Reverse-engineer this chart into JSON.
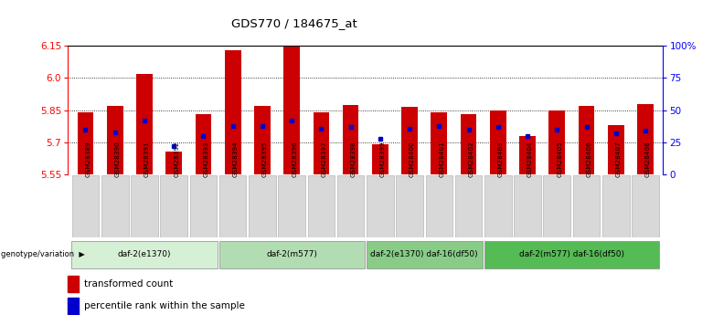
{
  "title": "GDS770 / 184675_at",
  "samples": [
    "GSM28389",
    "GSM28390",
    "GSM28391",
    "GSM28392",
    "GSM28393",
    "GSM28394",
    "GSM28395",
    "GSM28396",
    "GSM28397",
    "GSM28398",
    "GSM28399",
    "GSM28400",
    "GSM28401",
    "GSM28402",
    "GSM28403",
    "GSM28404",
    "GSM28405",
    "GSM28406",
    "GSM28407",
    "GSM28408"
  ],
  "transformed_count": [
    5.84,
    5.87,
    6.02,
    5.66,
    5.83,
    6.13,
    5.87,
    6.145,
    5.84,
    5.875,
    5.69,
    5.865,
    5.84,
    5.83,
    5.85,
    5.73,
    5.85,
    5.87,
    5.78,
    5.88
  ],
  "percentile_rank": [
    35,
    33,
    42,
    22,
    30,
    38,
    38,
    42,
    36,
    37,
    28,
    36,
    38,
    35,
    37,
    30,
    35,
    37,
    32,
    34
  ],
  "groups": [
    {
      "label": "daf-2(e1370)",
      "start": 0,
      "end": 4
    },
    {
      "label": "daf-2(m577)",
      "start": 5,
      "end": 9
    },
    {
      "label": "daf-2(e1370) daf-16(df50)",
      "start": 10,
      "end": 13
    },
    {
      "label": "daf-2(m577) daf-16(df50)",
      "start": 14,
      "end": 19
    }
  ],
  "group_colors": [
    "#d6f0d6",
    "#b2ddb2",
    "#88cc88",
    "#55bb55"
  ],
  "y_min": 5.55,
  "y_max": 6.15,
  "y_ticks": [
    5.55,
    5.7,
    5.85,
    6.0,
    6.15
  ],
  "right_y_ticks": [
    0,
    25,
    50,
    75,
    100
  ],
  "right_y_labels": [
    "0",
    "25",
    "50",
    "75",
    "100%"
  ],
  "bar_color": "#cc0000",
  "dot_color": "#0000cc",
  "legend_label_count": "transformed count",
  "legend_label_pct": "percentile rank within the sample",
  "xlabel_group": "genotype/variation"
}
